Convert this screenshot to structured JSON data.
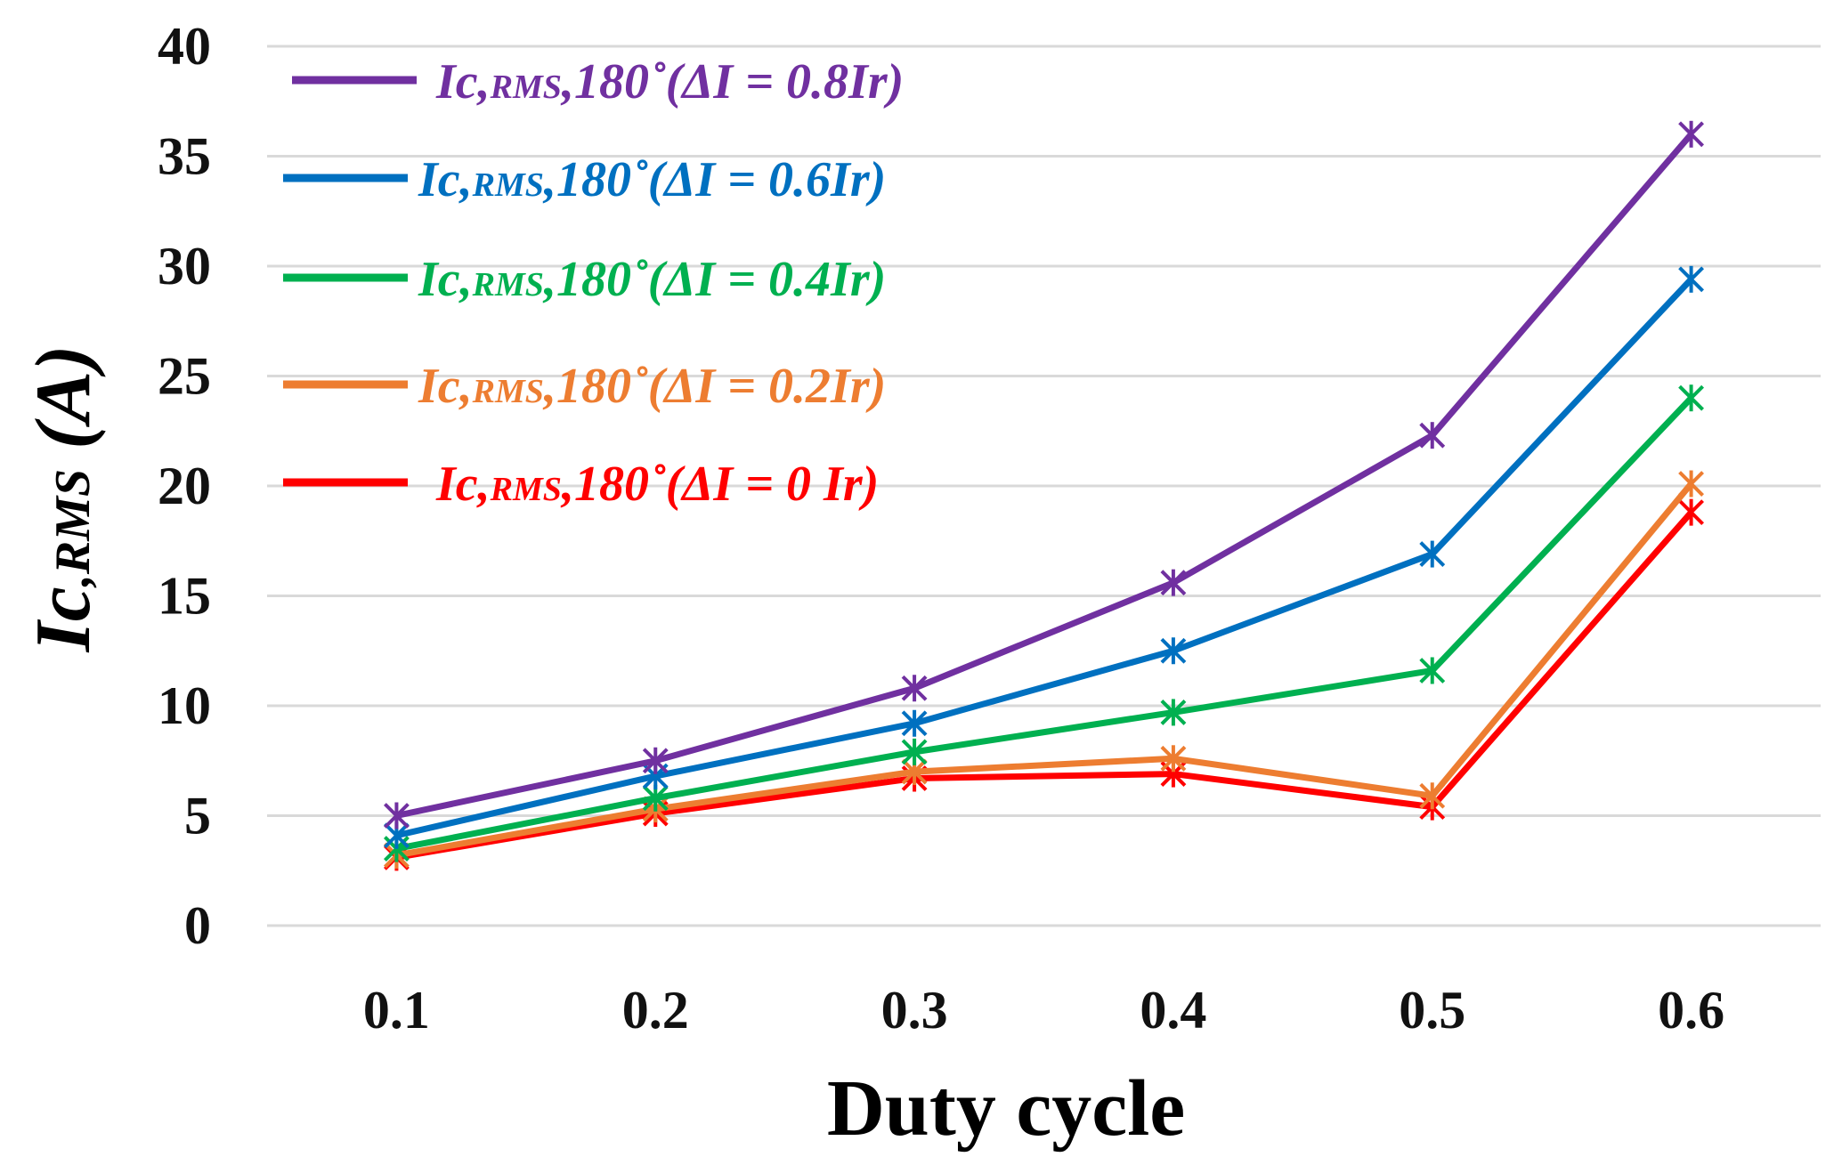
{
  "chart_data": {
    "type": "line",
    "title": "",
    "xlabel": "Duty cycle",
    "ylabel": {
      "main": "Ic",
      "sub": ",RMS",
      "unit": " (A)"
    },
    "categories": [
      "0.1",
      "0.2",
      "0.3",
      "0.4",
      "0.5",
      "0.6"
    ],
    "ylim": [
      0,
      40
    ],
    "yticks": [
      "0",
      "5",
      "10",
      "15",
      "20",
      "25",
      "30",
      "35",
      "40"
    ],
    "grid": true,
    "legend_position": "top-left",
    "series": [
      {
        "name": "Ic,RMS,180˚(ΔI = 0.8Ir)",
        "label_main": "Ic,",
        "label_sub": "RMS",
        "label_rest": ",180˚(ΔI = 0.8Ir)",
        "color": "#7030a0",
        "values": [
          5.0,
          7.5,
          10.8,
          15.6,
          22.3,
          36.0
        ]
      },
      {
        "name": "Ic,RMS,180˚(ΔI = 0.6Ir)",
        "label_main": "Ic,",
        "label_sub": "RMS",
        "label_rest": ",180˚(ΔI = 0.6Ir)",
        "color": "#0070c0",
        "values": [
          4.1,
          6.8,
          9.2,
          12.5,
          16.9,
          29.4
        ]
      },
      {
        "name": "Ic,RMS,180˚(ΔI = 0.4Ir)",
        "label_main": "Ic,",
        "label_sub": "RMS",
        "label_rest": ",180˚(ΔI = 0.4Ir)",
        "color": "#00b050",
        "values": [
          3.5,
          5.8,
          7.9,
          9.7,
          11.6,
          24.0
        ]
      },
      {
        "name": "Ic,RMS,180˚(ΔI = 0.2Ir)",
        "label_main": "Ic,",
        "label_sub": "RMS",
        "label_rest": ",180˚(ΔI = 0.2Ir)",
        "color": "#ed7d31",
        "values": [
          3.2,
          5.3,
          7.0,
          7.6,
          5.9,
          20.1
        ]
      },
      {
        "name": "Ic,RMS,180˚(ΔI = 0 Ir)",
        "label_main": "Ic,",
        "label_sub": "RMS",
        "label_rest": ",180˚(ΔI = 0 Ir)",
        "color": "#ff0000",
        "values": [
          3.1,
          5.1,
          6.7,
          6.9,
          5.4,
          18.8
        ]
      }
    ]
  }
}
